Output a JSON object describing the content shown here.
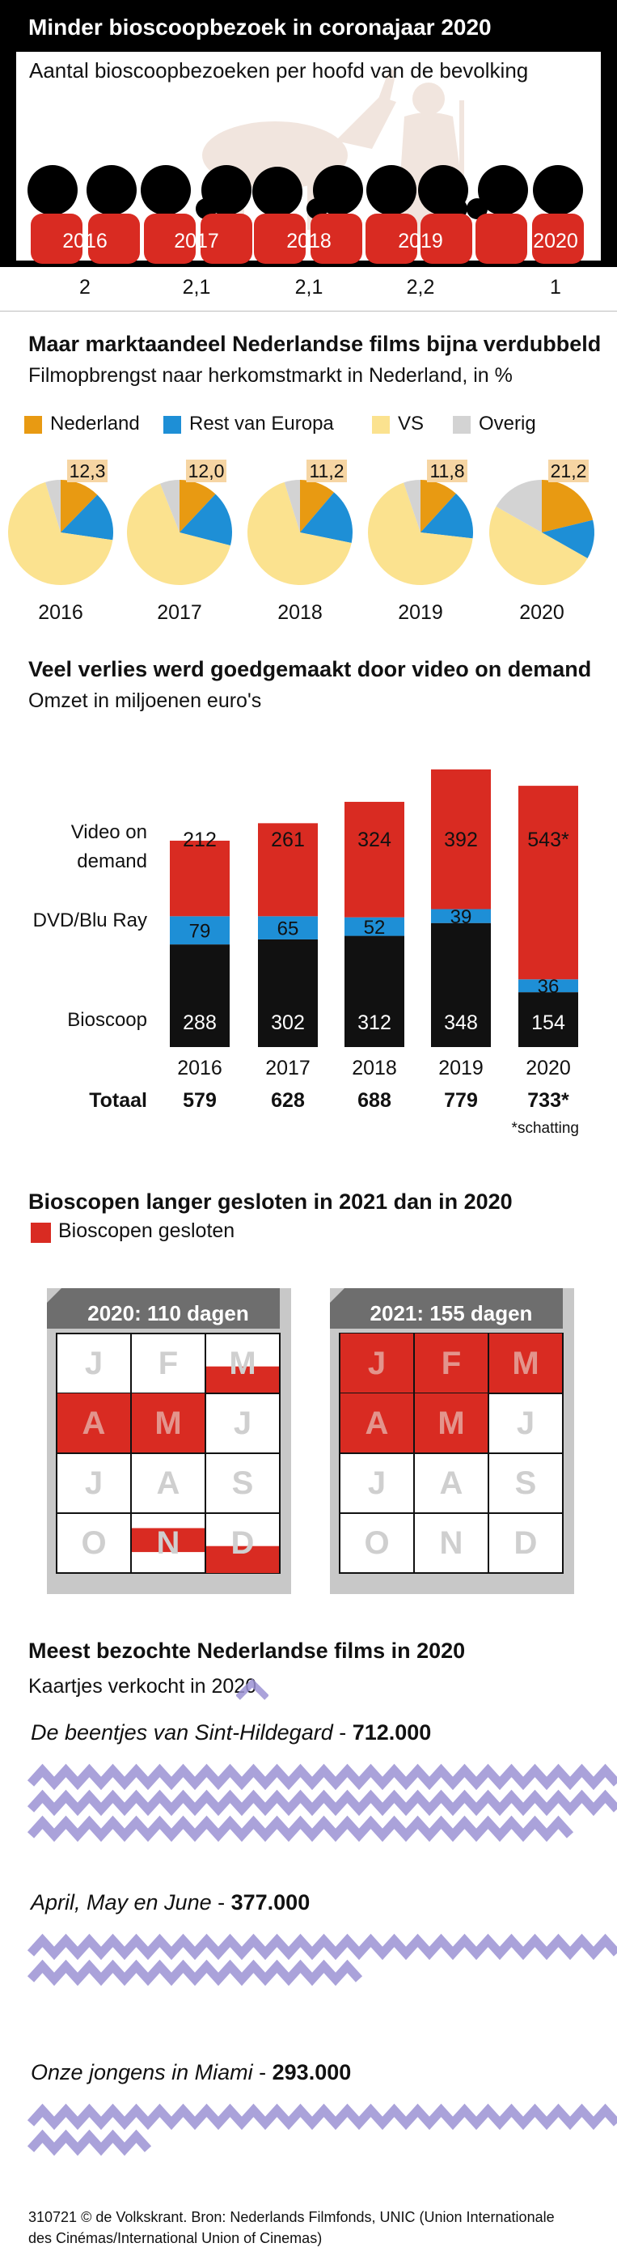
{
  "section1": {
    "title": "Minder bioscoopbezoek in coronajaar 2020",
    "subtitle": "Aantal bioscoopbezoeken per hoofd van de bevolking",
    "chart_data": {
      "type": "bar",
      "categories": [
        "2016",
        "2017",
        "2018",
        "2019",
        "2020"
      ],
      "values": [
        2,
        2.1,
        2.1,
        2.2,
        1
      ],
      "value_labels": [
        "2",
        "2,1",
        "2,1",
        "2,2",
        "1"
      ],
      "title": "Minder bioscoopbezoek in coronajaar 2020",
      "ylabel": "Aantal bioscoopbezoeken per hoofd van de bevolking"
    }
  },
  "section2": {
    "title": "Maar marktaandeel Nederlandse films bijna verdubbeld",
    "subtitle": "Filmopbrengst naar herkomstmarkt in Nederland, in %",
    "legend": [
      {
        "label": "Nederland",
        "color": "#e89a12"
      },
      {
        "label": "Rest van Europa",
        "color": "#1e8fd6"
      },
      {
        "label": "VS",
        "color": "#fbe28f"
      },
      {
        "label": "Overig",
        "color": "#d3d3d3"
      }
    ],
    "chart_data": {
      "type": "pie",
      "title": "Maar marktaandeel Nederlandse films bijna verdubbeld",
      "categories": [
        "2016",
        "2017",
        "2018",
        "2019",
        "2020"
      ],
      "series": [
        {
          "name": "Nederland",
          "values": [
            12.3,
            12.0,
            11.2,
            11.8,
            21.2
          ]
        },
        {
          "name": "Rest van Europa",
          "values": [
            15,
            17,
            17,
            15,
            12
          ]
        },
        {
          "name": "VS",
          "values": [
            68,
            65,
            67,
            68,
            50
          ]
        },
        {
          "name": "Overig",
          "values": [
            4.7,
            6.0,
            4.8,
            5.2,
            16.8
          ]
        }
      ],
      "labels": [
        "12,3",
        "12,0",
        "11,2",
        "11,8",
        "21,2"
      ]
    }
  },
  "section3": {
    "title": "Veel verlies werd goedgemaakt door video on demand",
    "subtitle": "Omzet in miljoenen euro's",
    "row_labels": {
      "vod_line1": "Video on",
      "vod_line2": "demand",
      "dvd": "DVD/Blu Ray",
      "bioscoop": "Bioscoop"
    },
    "total_label": "Totaal",
    "footnote": "*schatting",
    "colors": {
      "vod": "#d92b22",
      "dvd": "#1e8fd6",
      "bioscoop": "#111111"
    },
    "chart_data": {
      "type": "bar",
      "title": "Veel verlies werd goedgemaakt door video on demand",
      "ylabel": "Omzet in miljoenen euro's",
      "categories": [
        "2016",
        "2017",
        "2018",
        "2019",
        "2020"
      ],
      "series": [
        {
          "name": "Bioscoop",
          "values": [
            288,
            302,
            312,
            348,
            154
          ],
          "labels": [
            "288",
            "302",
            "312",
            "348",
            "154"
          ]
        },
        {
          "name": "DVD/Blu Ray",
          "values": [
            79,
            65,
            52,
            39,
            36
          ],
          "labels": [
            "79",
            "65",
            "52",
            "39",
            "36"
          ]
        },
        {
          "name": "Video on demand",
          "values": [
            212,
            261,
            324,
            392,
            543
          ],
          "labels": [
            "212",
            "261",
            "324",
            "392",
            "543*"
          ]
        }
      ],
      "totals": [
        "579",
        "628",
        "688",
        "779",
        "733*"
      ],
      "stacked": true
    }
  },
  "section4": {
    "title": "Bioscopen langer gesloten in 2021 dan in 2020",
    "legend_label": "Bioscopen gesloten",
    "legend_color": "#d92b22",
    "calendars": [
      {
        "title": "2020: 110 dagen",
        "months": [
          "J",
          "F",
          "M",
          "A",
          "M",
          "J",
          "J",
          "A",
          "S",
          "O",
          "N",
          "D"
        ],
        "closed_fraction": [
          0,
          0,
          0.45,
          1,
          1,
          0,
          0,
          0,
          0,
          0,
          0.4,
          0.45
        ],
        "fill_from": [
          "",
          "",
          "bottom",
          "full",
          "full",
          "",
          "",
          "",
          "",
          "",
          "top",
          "bottom"
        ]
      },
      {
        "title": "2021: 155 dagen",
        "months": [
          "J",
          "F",
          "M",
          "A",
          "M",
          "J",
          "J",
          "A",
          "S",
          "O",
          "N",
          "D"
        ],
        "closed_fraction": [
          1,
          1,
          1,
          1,
          1,
          0,
          0,
          0,
          0,
          0,
          0,
          0
        ],
        "fill_from": [
          "full",
          "full",
          "full",
          "full",
          "full",
          "",
          "",
          "",
          "",
          "",
          "",
          ""
        ]
      }
    ]
  },
  "section5": {
    "title": "Meest bezochte Nederlandse films in 2020",
    "subtitle": "Kaartjes verkocht in 2020",
    "chart_data": {
      "type": "bar",
      "title": "Meest bezochte Nederlandse films in 2020",
      "categories": [
        "De beentjes van Sint-Hildegard",
        "April, May en June",
        "Onze jongens in Miami"
      ],
      "values": [
        712000,
        377000,
        293000
      ],
      "value_labels": [
        "712.000",
        "377.000",
        "293.000"
      ]
    }
  },
  "footer": {
    "line1": "310721 © de Volkskrant. Bron: Nederlands Filmfonds, UNIC (Union Internationale",
    "line2": "des Cinémas/International Union of Cinemas)"
  }
}
